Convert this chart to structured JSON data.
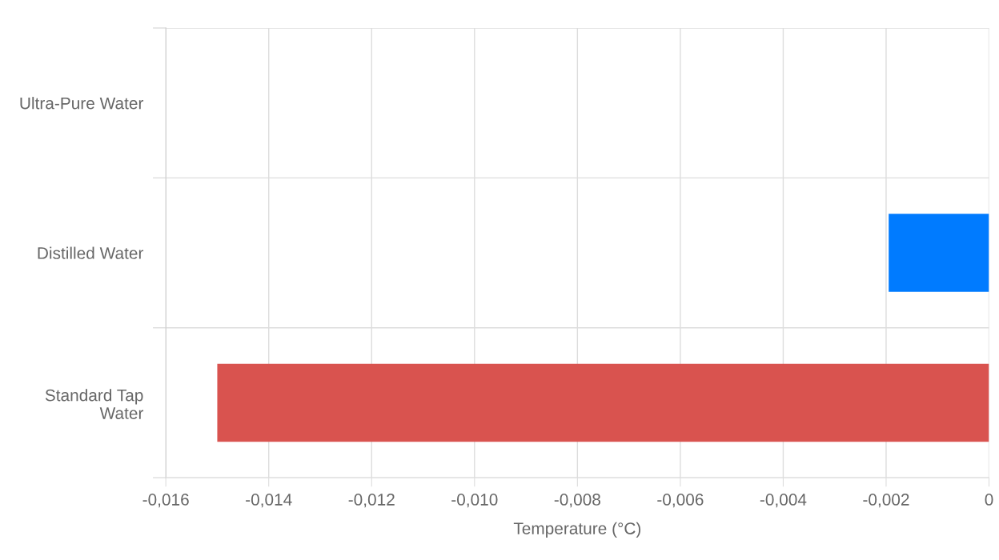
{
  "chart_data": {
    "type": "bar",
    "orientation": "horizontal",
    "categories": [
      "Ultra-Pure Water",
      "Distilled Water",
      "Standard Tap\nWater"
    ],
    "values": [
      0,
      -0.00195,
      -0.015
    ],
    "colors": [
      "#007bff",
      "#007bff",
      "#d9534f"
    ],
    "xlabel": "Temperature (°C)",
    "xlim": [
      -0.016,
      0
    ],
    "xticks": [
      {
        "value": -0.016,
        "label": "-0,016"
      },
      {
        "value": -0.014,
        "label": "-0,014"
      },
      {
        "value": -0.012,
        "label": "-0,012"
      },
      {
        "value": -0.01,
        "label": "-0,010"
      },
      {
        "value": -0.008,
        "label": "-0,008"
      },
      {
        "value": -0.006,
        "label": "-0,006"
      },
      {
        "value": -0.004,
        "label": "-0,004"
      },
      {
        "value": -0.002,
        "label": "-0,002"
      },
      {
        "value": 0,
        "label": "0"
      }
    ],
    "grid": true
  }
}
